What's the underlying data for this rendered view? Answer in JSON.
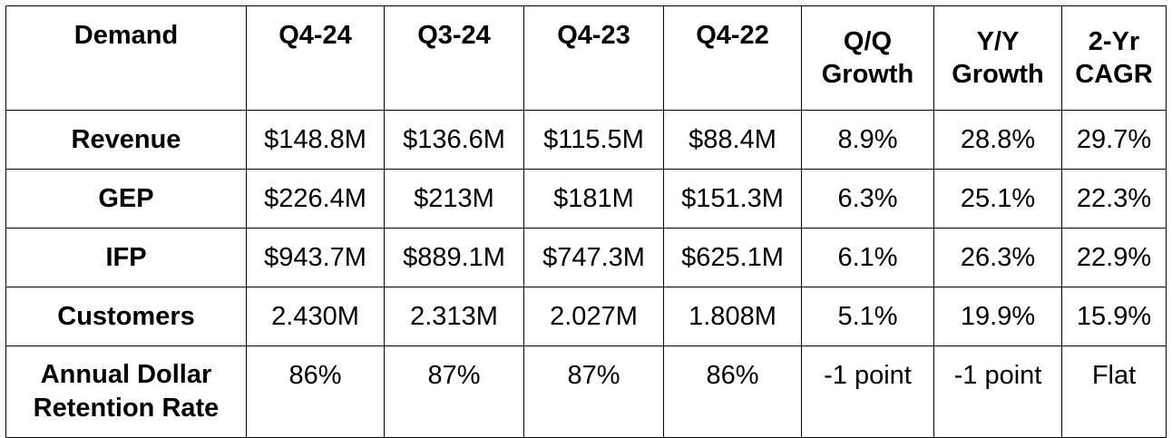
{
  "table": {
    "headers": [
      "Demand",
      "Q4-24",
      "Q3-24",
      "Q4-23",
      "Q4-22",
      "Q/Q Growth",
      "Y/Y Growth",
      "2-Yr CAGR"
    ],
    "rows": [
      {
        "label": "Revenue",
        "cells": [
          "$148.8M",
          "$136.6M",
          "$115.5M",
          "$88.4M",
          "8.9%",
          "28.8%",
          "29.7%"
        ]
      },
      {
        "label": "GEP",
        "cells": [
          "$226.4M",
          "$213M",
          "$181M",
          "$151.3M",
          "6.3%",
          "25.1%",
          "22.3%"
        ]
      },
      {
        "label": "IFP",
        "cells": [
          "$943.7M",
          "$889.1M",
          "$747.3M",
          "$625.1M",
          "6.1%",
          "26.3%",
          "22.9%"
        ]
      },
      {
        "label": "Customers",
        "cells": [
          "2.430M",
          "2.313M",
          "2.027M",
          "1.808M",
          "5.1%",
          "19.9%",
          "15.9%"
        ]
      },
      {
        "label": "Annual Dollar Retention Rate",
        "cells": [
          "86%",
          "87%",
          "87%",
          "86%",
          "-1 point",
          "-1 point",
          "Flat"
        ]
      }
    ]
  }
}
